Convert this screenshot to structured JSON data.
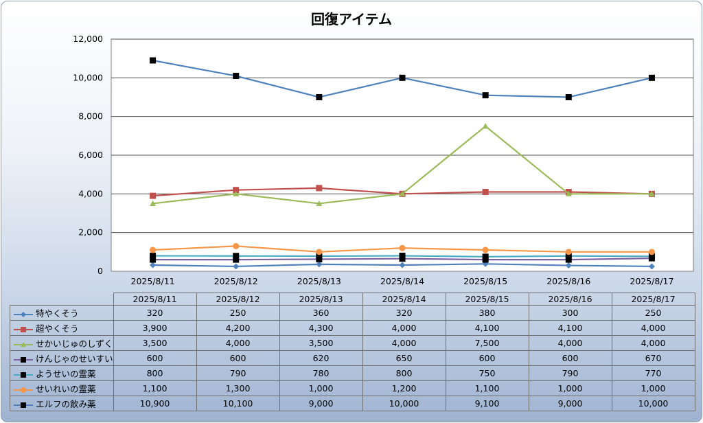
{
  "chart_data": {
    "type": "line",
    "title": "回復アイテム",
    "categories": [
      "2025/8/11",
      "2025/8/12",
      "2025/8/13",
      "2025/8/14",
      "2025/8/15",
      "2025/8/16",
      "2025/8/17"
    ],
    "ylim": [
      0,
      12000
    ],
    "yticks": [
      "0",
      "2,000",
      "4,000",
      "6,000",
      "8,000",
      "10,000",
      "12,000"
    ],
    "grid": true,
    "legend": "data-table-bottom",
    "series": [
      {
        "name": "特やくそう",
        "color": "#4f81bd",
        "marker": "diamond",
        "values": [
          320,
          250,
          360,
          320,
          380,
          300,
          250
        ],
        "labels": [
          "320",
          "250",
          "360",
          "320",
          "380",
          "300",
          "250"
        ]
      },
      {
        "name": "超やくそう",
        "color": "#c0504d",
        "marker": "square",
        "values": [
          3900,
          4200,
          4300,
          4000,
          4100,
          4100,
          4000
        ],
        "labels": [
          "3,900",
          "4,200",
          "4,300",
          "4,000",
          "4,100",
          "4,100",
          "4,000"
        ]
      },
      {
        "name": "せかいじゅのしずく",
        "color": "#9bbb59",
        "marker": "triangle",
        "values": [
          3500,
          4000,
          3500,
          4000,
          7500,
          4000,
          4000
        ],
        "labels": [
          "3,500",
          "4,000",
          "3,500",
          "4,000",
          "7,500",
          "4,000",
          "4,000"
        ]
      },
      {
        "name": "けんじゃのせいすい",
        "color": "#8064a2",
        "marker": "square-black",
        "values": [
          600,
          600,
          620,
          650,
          600,
          600,
          670
        ],
        "labels": [
          "600",
          "600",
          "620",
          "650",
          "600",
          "600",
          "670"
        ]
      },
      {
        "name": "ようせいの霊薬",
        "color": "#4bacc6",
        "marker": "square-black",
        "values": [
          800,
          790,
          780,
          800,
          750,
          790,
          770
        ],
        "labels": [
          "800",
          "790",
          "780",
          "800",
          "750",
          "790",
          "770"
        ]
      },
      {
        "name": "せいれいの霊薬",
        "color": "#f79646",
        "marker": "circle",
        "values": [
          1100,
          1300,
          1000,
          1200,
          1100,
          1000,
          1000
        ],
        "labels": [
          "1,100",
          "1,300",
          "1,000",
          "1,200",
          "1,100",
          "1,000",
          "1,000"
        ]
      },
      {
        "name": "エルフの飲み薬",
        "color": "#4f81bd",
        "marker": "square-black",
        "values": [
          10900,
          10100,
          9000,
          10000,
          9100,
          9000,
          10000
        ],
        "labels": [
          "10,900",
          "10,100",
          "9,000",
          "10,000",
          "9,100",
          "9,000",
          "10,000"
        ]
      }
    ]
  }
}
